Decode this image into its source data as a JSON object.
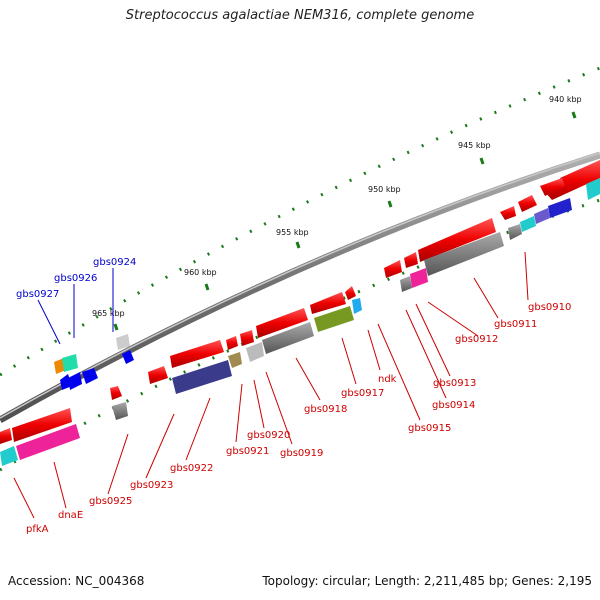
{
  "title": "Streptococcus agalactiae NEM316, complete genome",
  "footer": {
    "accession": "Accession: NC_004368",
    "summary": "Topology: circular; Length: 2,211,485 bp; Genes: 2,195"
  },
  "colors": {
    "backbone": "#808080",
    "tick": "#1a7a1a",
    "forward_label": "#0000cc",
    "reverse_label": "#cc0000"
  },
  "ticks": [
    "940 kbp",
    "945 kbp",
    "950 kbp",
    "955 kbp",
    "960 kbp",
    "965 kbp"
  ],
  "genes": {
    "forward": [
      "gbs0924",
      "gbs0926",
      "gbs0927"
    ],
    "reverse": [
      "gbs0910",
      "gbs0911",
      "gbs0912",
      "gbs0913",
      "gbs0914",
      "gbs0915",
      "ndk",
      "gbs0917",
      "gbs0918",
      "gbs0919",
      "gbs0920",
      "gbs0921",
      "gbs0922",
      "gbs0923",
      "gbs0925",
      "dnaE",
      "pfkA"
    ]
  }
}
